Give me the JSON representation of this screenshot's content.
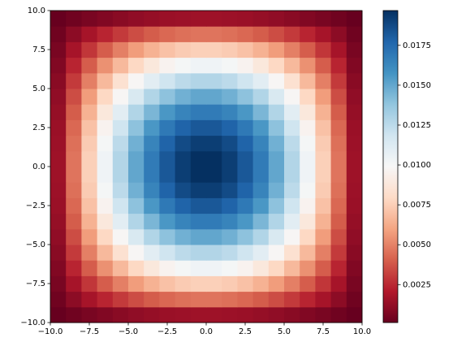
{
  "chart_data": {
    "type": "heatmap",
    "colormap": "RdBu",
    "x": [
      -9.5,
      -8.5,
      -7.5,
      -6.5,
      -5.5,
      -4.5,
      -3.5,
      -2.5,
      -1.5,
      -0.5,
      0.5,
      1.5,
      2.5,
      3.5,
      4.5,
      5.5,
      6.5,
      7.5,
      8.5,
      9.5
    ],
    "y": [
      -9.5,
      -8.5,
      -7.5,
      -6.5,
      -5.5,
      -4.5,
      -3.5,
      -2.5,
      -1.5,
      -0.5,
      0.5,
      1.5,
      2.5,
      3.5,
      4.5,
      5.5,
      6.5,
      7.5,
      8.5,
      9.5
    ],
    "z": [
      [
        0.00012,
        0.00036,
        0.00059,
        0.00081,
        0.00101,
        0.00118,
        0.00132,
        0.00144,
        0.00151,
        0.00155,
        0.00155,
        0.00151,
        0.00144,
        0.00132,
        0.00118,
        0.00101,
        0.00081,
        0.00059,
        0.00036,
        0.00012
      ],
      [
        0.00036,
        0.00108,
        0.00177,
        0.00241,
        0.003,
        0.00351,
        0.00394,
        0.00427,
        0.00449,
        0.00461,
        0.00461,
        0.00449,
        0.00427,
        0.00394,
        0.00351,
        0.003,
        0.00241,
        0.00177,
        0.00108,
        0.00036
      ],
      [
        0.00059,
        0.00177,
        0.0029,
        0.00396,
        0.00492,
        0.00576,
        0.00646,
        0.007,
        0.00737,
        0.00755,
        0.00755,
        0.00737,
        0.007,
        0.00646,
        0.00576,
        0.00492,
        0.00396,
        0.0029,
        0.00177,
        0.00059
      ],
      [
        0.00081,
        0.00241,
        0.00396,
        0.00541,
        0.00672,
        0.00787,
        0.00882,
        0.00956,
        0.01006,
        0.01031,
        0.01031,
        0.01006,
        0.00956,
        0.00882,
        0.00787,
        0.00672,
        0.00541,
        0.00396,
        0.00241,
        0.00081
      ],
      [
        0.00101,
        0.003,
        0.00492,
        0.00672,
        0.00835,
        0.00978,
        0.01096,
        0.01188,
        0.0125,
        0.01282,
        0.01282,
        0.0125,
        0.01188,
        0.01096,
        0.00978,
        0.00835,
        0.00672,
        0.00492,
        0.003,
        0.00101
      ],
      [
        0.00118,
        0.00351,
        0.00576,
        0.00787,
        0.00978,
        0.01145,
        0.01284,
        0.01391,
        0.01464,
        0.01501,
        0.01501,
        0.01464,
        0.01391,
        0.01284,
        0.01145,
        0.00978,
        0.00787,
        0.00576,
        0.00351,
        0.00118
      ],
      [
        0.00132,
        0.00394,
        0.00646,
        0.00882,
        0.01096,
        0.01284,
        0.01439,
        0.0156,
        0.01642,
        0.01683,
        0.01683,
        0.01642,
        0.0156,
        0.01439,
        0.01284,
        0.01096,
        0.00882,
        0.00646,
        0.00394,
        0.00132
      ],
      [
        0.00144,
        0.00427,
        0.007,
        0.00956,
        0.01188,
        0.01391,
        0.0156,
        0.0169,
        0.01779,
        0.01824,
        0.01824,
        0.01779,
        0.0169,
        0.0156,
        0.01391,
        0.01188,
        0.00956,
        0.007,
        0.00427,
        0.00144
      ],
      [
        0.00151,
        0.00449,
        0.00737,
        0.01006,
        0.0125,
        0.01464,
        0.01642,
        0.01779,
        0.01872,
        0.01919,
        0.01919,
        0.01872,
        0.01779,
        0.01642,
        0.01464,
        0.0125,
        0.01006,
        0.00737,
        0.00449,
        0.00151
      ],
      [
        0.00155,
        0.00461,
        0.00755,
        0.01031,
        0.01282,
        0.01501,
        0.01683,
        0.01824,
        0.01919,
        0.01968,
        0.01968,
        0.01919,
        0.01824,
        0.01683,
        0.01501,
        0.01282,
        0.01031,
        0.00755,
        0.00461,
        0.00155
      ],
      [
        0.00155,
        0.00461,
        0.00755,
        0.01031,
        0.01282,
        0.01501,
        0.01683,
        0.01824,
        0.01919,
        0.01968,
        0.01968,
        0.01919,
        0.01824,
        0.01683,
        0.01501,
        0.01282,
        0.01031,
        0.00755,
        0.00461,
        0.00155
      ],
      [
        0.00151,
        0.00449,
        0.00737,
        0.01006,
        0.0125,
        0.01464,
        0.01642,
        0.01779,
        0.01872,
        0.01919,
        0.01919,
        0.01872,
        0.01779,
        0.01642,
        0.01464,
        0.0125,
        0.01006,
        0.00737,
        0.00449,
        0.00151
      ],
      [
        0.00144,
        0.00427,
        0.007,
        0.00956,
        0.01188,
        0.01391,
        0.0156,
        0.0169,
        0.01779,
        0.01824,
        0.01824,
        0.01779,
        0.0169,
        0.0156,
        0.01391,
        0.01188,
        0.00956,
        0.007,
        0.00427,
        0.00144
      ],
      [
        0.00132,
        0.00394,
        0.00646,
        0.00882,
        0.01096,
        0.01284,
        0.01439,
        0.0156,
        0.01642,
        0.01683,
        0.01683,
        0.01642,
        0.0156,
        0.01439,
        0.01284,
        0.01096,
        0.00882,
        0.00646,
        0.00394,
        0.00132
      ],
      [
        0.00118,
        0.00351,
        0.00576,
        0.00787,
        0.00978,
        0.01145,
        0.01284,
        0.01391,
        0.01464,
        0.01501,
        0.01501,
        0.01464,
        0.01391,
        0.01284,
        0.01145,
        0.00978,
        0.00787,
        0.00576,
        0.00351,
        0.00118
      ],
      [
        0.00101,
        0.003,
        0.00492,
        0.00672,
        0.00835,
        0.00978,
        0.01096,
        0.01188,
        0.0125,
        0.01282,
        0.01282,
        0.0125,
        0.01188,
        0.01096,
        0.00978,
        0.00835,
        0.00672,
        0.00492,
        0.003,
        0.00101
      ],
      [
        0.00081,
        0.00241,
        0.00396,
        0.00541,
        0.00672,
        0.00787,
        0.00882,
        0.00956,
        0.01006,
        0.01031,
        0.01031,
        0.01006,
        0.00956,
        0.00882,
        0.00787,
        0.00672,
        0.00541,
        0.00396,
        0.00241,
        0.00081
      ],
      [
        0.00059,
        0.00177,
        0.0029,
        0.00396,
        0.00492,
        0.00576,
        0.00646,
        0.007,
        0.00737,
        0.00755,
        0.00755,
        0.00737,
        0.007,
        0.00646,
        0.00576,
        0.00492,
        0.00396,
        0.0029,
        0.00177,
        0.00059
      ],
      [
        0.00036,
        0.00108,
        0.00177,
        0.00241,
        0.003,
        0.00351,
        0.00394,
        0.00427,
        0.00449,
        0.00461,
        0.00461,
        0.00449,
        0.00427,
        0.00394,
        0.00351,
        0.003,
        0.00241,
        0.00177,
        0.00108,
        0.00036
      ],
      [
        0.00012,
        0.00036,
        0.00059,
        0.00081,
        0.00101,
        0.00118,
        0.00132,
        0.00144,
        0.00151,
        0.00155,
        0.00155,
        0.00151,
        0.00144,
        0.00132,
        0.00118,
        0.00101,
        0.00081,
        0.00059,
        0.00036,
        0.00012
      ]
    ],
    "xlim": [
      -10,
      10
    ],
    "ylim": [
      -10,
      10
    ],
    "xticks": [
      {
        "value": -10,
        "label": "−10.0"
      },
      {
        "value": -7.5,
        "label": "−7.5"
      },
      {
        "value": -5,
        "label": "−5.0"
      },
      {
        "value": -2.5,
        "label": "−2.5"
      },
      {
        "value": 0,
        "label": "0.0"
      },
      2.5,
      {
        "value": 5,
        "label": "5.0"
      },
      7.5,
      {
        "value": 10,
        "label": "10.0"
      }
    ],
    "yticks": [
      {
        "value": -10,
        "label": "−10.0"
      },
      {
        "value": -7.5,
        "label": "−7.5"
      },
      {
        "value": -5,
        "label": "−5.0"
      },
      {
        "value": -2.5,
        "label": "−2.5"
      },
      {
        "value": 0,
        "label": "0.0"
      },
      2.5,
      {
        "value": 5,
        "label": "5.0"
      },
      7.5,
      {
        "value": 10,
        "label": "10.0"
      }
    ],
    "clim": [
      0.00012,
      0.01968
    ],
    "cticks": [
      0.0025,
      {
        "value": 0.005,
        "label": "0.0050"
      },
      0.0075,
      {
        "value": 0.01,
        "label": "0.0100"
      },
      0.0125,
      {
        "value": 0.015,
        "label": "0.0150"
      },
      0.0175
    ]
  }
}
